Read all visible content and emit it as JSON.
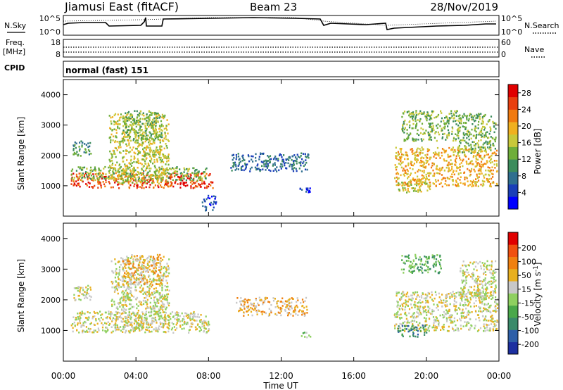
{
  "header": {
    "station": "Jiamusi East (fitACF)",
    "beam": "Beam 23",
    "date": "28/Nov/2019"
  },
  "strip": {
    "nsky_label": "N.Sky",
    "nsky_ticks": [
      "10^5",
      "10^0"
    ],
    "nsearch_ticks": [
      "10^5",
      "10^0"
    ],
    "nsearch_label": "N.Search",
    "freq_label_1": "Freq.",
    "freq_label_2": "[MHz]",
    "freq_ticks": [
      "18",
      "8"
    ],
    "nave_ticks": [
      "60",
      "0"
    ],
    "nave_label": "Nave",
    "cpid_label": "CPID",
    "cpid_value": "normal (fast) 151"
  },
  "axes": {
    "ylabel": "Slant Range [km]",
    "xlabel": "Time UT",
    "y_ticks": [
      "1000",
      "2000",
      "3000",
      "4000"
    ],
    "x_ticks": [
      "00:00",
      "04:00",
      "08:00",
      "12:00",
      "16:00",
      "20:00",
      "00:00"
    ]
  },
  "colors": {
    "nsearch_line": "#000000"
  },
  "power_bar": {
    "label": "Power [dB]",
    "ticks": [
      "4",
      "8",
      "12",
      "16",
      "20",
      "24",
      "28"
    ],
    "colors": [
      "#0000ff",
      "#1a3fb8",
      "#2f6f8f",
      "#3c8c5c",
      "#6fae3a",
      "#c8c83a",
      "#f0b020",
      "#f07a10",
      "#e84010",
      "#e00000"
    ]
  },
  "velocity_bar": {
    "label": "Velocity [m s^-1]",
    "ticks": [
      "200",
      "100",
      "50",
      "15",
      "-15",
      "-50",
      "-100",
      "-200"
    ],
    "colors": [
      "#1c2fa0",
      "#2e5fa8",
      "#3a8a6a",
      "#4aa84a",
      "#8fd060",
      "#c8c8c8",
      "#e8b020",
      "#f08010",
      "#f05010",
      "#e00000"
    ]
  },
  "chart_data": [
    {
      "type": "heatmap",
      "name": "Power",
      "x_range_hours": [
        0,
        24
      ],
      "ylim": [
        0,
        4500
      ],
      "regions": [
        {
          "t0": 0.4,
          "t1": 8.2,
          "r0": 950,
          "r1": 1450,
          "level": 8
        },
        {
          "t0": 0.4,
          "t1": 7.9,
          "r0": 1200,
          "r1": 1650,
          "level": 4
        },
        {
          "t0": 2.5,
          "t1": 5.8,
          "r0": 1100,
          "r1": 3400,
          "level": 5
        },
        {
          "t0": 0.5,
          "t1": 1.5,
          "r0": 2000,
          "r1": 2500,
          "level": 3
        },
        {
          "t0": 3.2,
          "t1": 5.5,
          "r0": 2500,
          "r1": 3500,
          "level": 4
        },
        {
          "t0": 7.6,
          "t1": 8.4,
          "r0": 200,
          "r1": 700,
          "level": 1
        },
        {
          "t0": 9.2,
          "t1": 13.5,
          "r0": 1500,
          "r1": 2100,
          "level": 2
        },
        {
          "t0": 13.0,
          "t1": 13.6,
          "r0": 800,
          "r1": 1000,
          "level": 1
        },
        {
          "t0": 18.2,
          "t1": 23.9,
          "r0": 1000,
          "r1": 2300,
          "level": 6
        },
        {
          "t0": 18.4,
          "t1": 20.3,
          "r0": 800,
          "r1": 1200,
          "level": 5
        },
        {
          "t0": 18.6,
          "t1": 21.8,
          "r0": 2500,
          "r1": 3500,
          "level": 4
        },
        {
          "t0": 21.7,
          "t1": 23.8,
          "r0": 2100,
          "r1": 3400,
          "level": 4
        }
      ],
      "colorbar": {
        "label": "Power [dB]",
        "min": 0,
        "max": 30
      }
    },
    {
      "type": "heatmap",
      "name": "Velocity",
      "x_range_hours": [
        0,
        24
      ],
      "ylim": [
        0,
        4500
      ],
      "regions": [
        {
          "t0": 0.4,
          "t1": 8.0,
          "r0": 950,
          "r1": 1650,
          "level": 5
        },
        {
          "t0": 2.6,
          "t1": 5.8,
          "r0": 1100,
          "r1": 3400,
          "level": 5
        },
        {
          "t0": 3.2,
          "t1": 5.5,
          "r0": 2500,
          "r1": 3500,
          "level": 6
        },
        {
          "t0": 0.5,
          "t1": 1.5,
          "r0": 2000,
          "r1": 2500,
          "level": 5
        },
        {
          "t0": 9.5,
          "t1": 13.4,
          "r0": 1500,
          "r1": 2100,
          "level": 6
        },
        {
          "t0": 13.0,
          "t1": 13.6,
          "r0": 800,
          "r1": 1000,
          "level": 4
        },
        {
          "t0": 18.2,
          "t1": 23.9,
          "r0": 1000,
          "r1": 2300,
          "level": 5
        },
        {
          "t0": 18.4,
          "t1": 20.0,
          "r0": 800,
          "r1": 1200,
          "level": 2
        },
        {
          "t0": 18.6,
          "t1": 20.8,
          "r0": 2900,
          "r1": 3500,
          "level": 3
        },
        {
          "t0": 21.8,
          "t1": 23.8,
          "r0": 2100,
          "r1": 3300,
          "level": 5
        }
      ],
      "colorbar": {
        "label": "Velocity [m s^-1]",
        "min": -200,
        "max": 200
      }
    }
  ]
}
